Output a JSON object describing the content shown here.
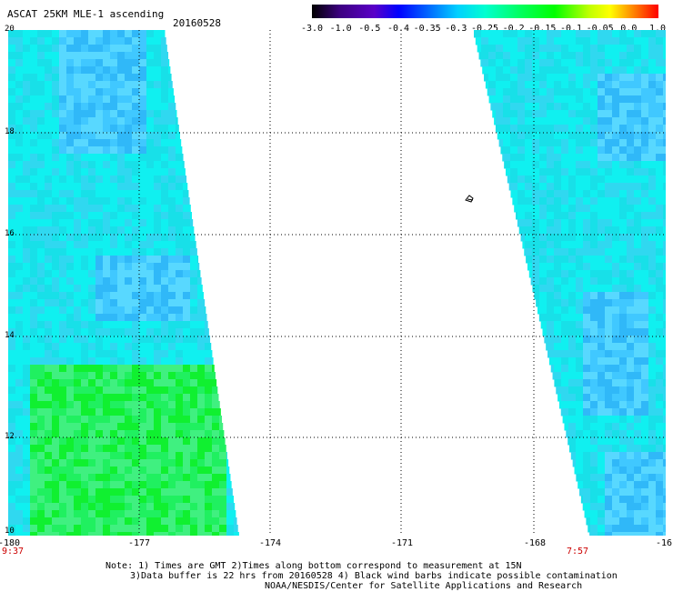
{
  "header": {
    "title": "ASCAT 25KM MLE-1 ascending",
    "date": "20160528"
  },
  "colorbar": {
    "labels": [
      "-3.0",
      "-1.0",
      "-0.5",
      "-0.4",
      "-0.35",
      "-0.3",
      "-0.25",
      "-0.2",
      "-0.15",
      "-0.1",
      "-0.05",
      "0.0",
      "1.0"
    ],
    "colors": [
      "#000000",
      "#3c0080",
      "#5a00c8",
      "#0000ff",
      "#0060ff",
      "#00c0ff",
      "#00ffff",
      "#00ff60",
      "#00ff00",
      "#c0ff00",
      "#ffff00",
      "#ff8000",
      "#ff0000"
    ]
  },
  "map": {
    "x_ticks": [
      "-180",
      "-177",
      "-174",
      "-171",
      "-168",
      "-16"
    ],
    "y_ticks": [
      "20",
      "18",
      "16",
      "14",
      "12",
      "10"
    ],
    "times": {
      "left": "9:37",
      "right": "7:57"
    },
    "lon_range": [
      -180,
      -165
    ],
    "lat_range": [
      10,
      20
    ],
    "swath_color": "#16e8e8"
  },
  "notes": {
    "line1": "Note: 1) Times are GMT 2)Times along bottom correspond to measurement at 15N",
    "line2": "3)Data buffer is 22 hrs from 20160528 4) Black wind barbs indicate possible contamination",
    "line3": "NOAA/NESDIS/Center for Satellite Applications and Research"
  }
}
